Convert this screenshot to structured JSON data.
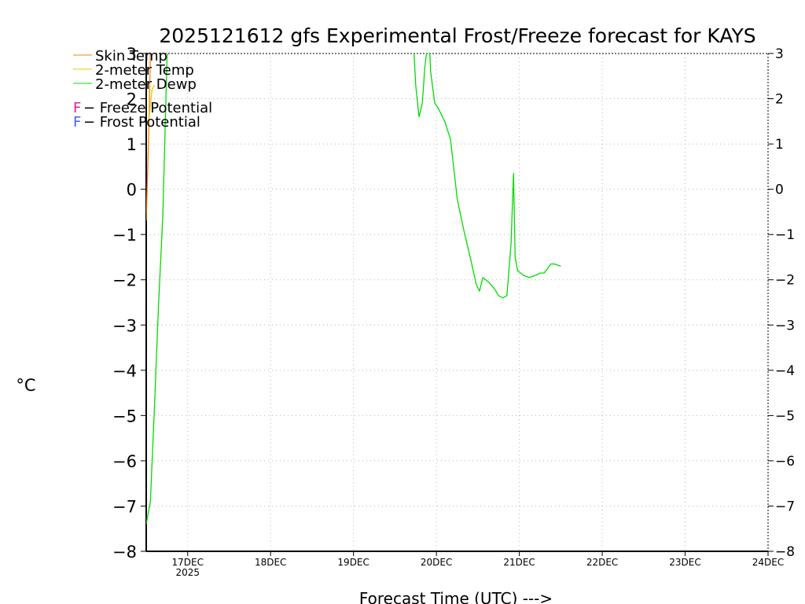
{
  "chart_data": {
    "type": "line",
    "title": "2025121612 gfs Experimental Frost/Freeze forecast for KAYS",
    "xlabel": "Forecast Time (UTC) --->",
    "ylabel": "°C",
    "ylim": [
      -8,
      3
    ],
    "y_ticks": [
      3,
      2,
      1,
      0,
      -1,
      -2,
      -3,
      -4,
      -5,
      -6,
      -7,
      -8
    ],
    "x_range_days": [
      16.5,
      24
    ],
    "x_ticks": [
      {
        "day": 17,
        "label": "17DEC",
        "sublabel": "2025"
      },
      {
        "day": 18,
        "label": "18DEC",
        "sublabel": ""
      },
      {
        "day": 19,
        "label": "19DEC",
        "sublabel": ""
      },
      {
        "day": 20,
        "label": "20DEC",
        "sublabel": ""
      },
      {
        "day": 21,
        "label": "21DEC",
        "sublabel": ""
      },
      {
        "day": 22,
        "label": "22DEC",
        "sublabel": ""
      },
      {
        "day": 23,
        "label": "23DEC",
        "sublabel": ""
      },
      {
        "day": 24,
        "label": "24DEC",
        "sublabel": ""
      }
    ],
    "grid": true,
    "legend": {
      "position": "top-left",
      "entries": [
        {
          "label": "Skin Temp",
          "color": "#ff8000"
        },
        {
          "label": "2-meter Temp",
          "color": "#e6c800"
        },
        {
          "label": "2-meter Dewp",
          "color": "#00dc00"
        }
      ],
      "potentials": [
        {
          "letter": "F",
          "label": " - Freeze Potential",
          "color": "#e020a0"
        },
        {
          "letter": "F",
          "label": " - Frost Potential",
          "color": "#4060ff"
        }
      ]
    },
    "series": [
      {
        "name": "Skin Temp",
        "color": "#ff8000",
        "points": [
          [
            16.5,
            -0.7
          ],
          [
            16.53,
            1.2
          ],
          [
            16.55,
            3.0
          ]
        ]
      },
      {
        "name": "2-meter Temp",
        "color": "#e6c800",
        "points": [
          [
            16.53,
            1.5
          ],
          [
            16.57,
            2.2
          ],
          [
            16.6,
            2.3
          ]
        ]
      },
      {
        "name": "2-meter Dewp",
        "color": "#00dc00",
        "points": [
          [
            16.5,
            -7.4
          ],
          [
            16.55,
            -6.9
          ],
          [
            16.6,
            -4.8
          ],
          [
            16.65,
            -2.5
          ],
          [
            16.7,
            -0.6
          ],
          [
            16.73,
            1.5
          ],
          [
            16.75,
            2.9
          ],
          [
            16.76,
            3.0
          ],
          null,
          [
            19.73,
            3.0
          ],
          [
            19.75,
            2.3
          ],
          [
            19.79,
            1.6
          ],
          [
            19.83,
            1.9
          ],
          [
            19.86,
            2.7
          ],
          [
            19.88,
            3.0
          ],
          [
            19.92,
            3.0
          ],
          [
            19.93,
            2.6
          ],
          [
            19.98,
            1.9
          ],
          [
            20.02,
            1.8
          ],
          [
            20.1,
            1.5
          ],
          [
            20.17,
            1.1
          ],
          [
            20.25,
            -0.2
          ],
          [
            20.33,
            -0.9
          ],
          [
            20.42,
            -1.6
          ],
          [
            20.48,
            -2.1
          ],
          [
            20.52,
            -2.25
          ],
          [
            20.56,
            -1.95
          ],
          [
            20.63,
            -2.05
          ],
          [
            20.7,
            -2.2
          ],
          [
            20.75,
            -2.35
          ],
          [
            20.8,
            -2.4
          ],
          [
            20.85,
            -2.35
          ],
          [
            20.9,
            -1.2
          ],
          [
            20.93,
            0.35
          ],
          [
            20.95,
            -1.5
          ],
          [
            20.98,
            -1.8
          ],
          [
            21.05,
            -1.9
          ],
          [
            21.12,
            -1.95
          ],
          [
            21.2,
            -1.9
          ],
          [
            21.25,
            -1.85
          ],
          [
            21.3,
            -1.85
          ],
          [
            21.38,
            -1.65
          ],
          [
            21.42,
            -1.65
          ],
          [
            21.5,
            -1.7
          ]
        ]
      }
    ]
  }
}
